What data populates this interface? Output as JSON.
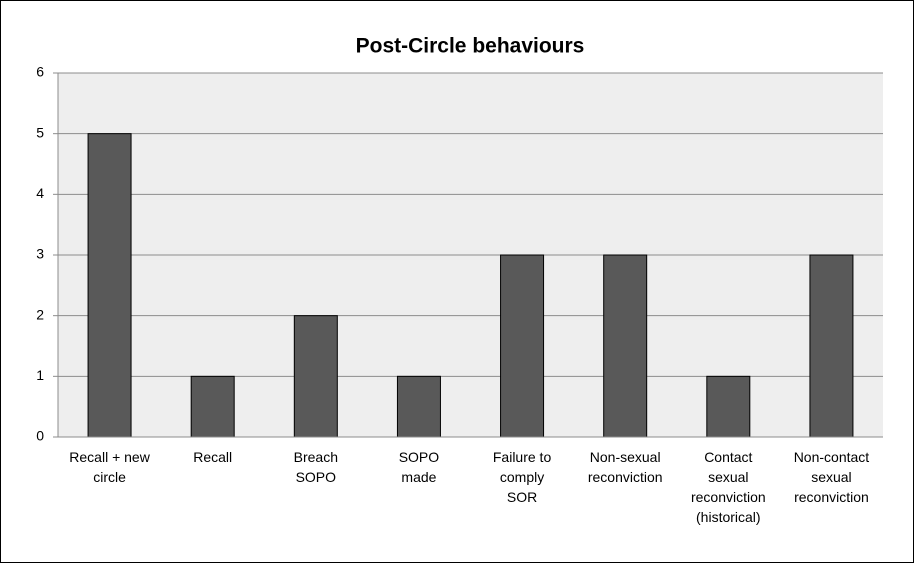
{
  "chart_data": {
    "type": "bar",
    "title": "Post-Circle behaviours",
    "categories": [
      "Recall + new\ncircle",
      "Recall",
      "Breach\nSOPO",
      "SOPO\nmade",
      "Failure to\ncomply\nSOR",
      "Non-sexual\nreconviction",
      "Contact\nsexual\nreconviction\n(historical)",
      "Non-contact\nsexual\nreconviction"
    ],
    "values": [
      5,
      1,
      2,
      1,
      3,
      3,
      1,
      3
    ],
    "color": "#595959",
    "ylim": [
      0,
      6
    ],
    "yticks": [
      0,
      1,
      2,
      3,
      4,
      5,
      6
    ],
    "grid": true
  }
}
